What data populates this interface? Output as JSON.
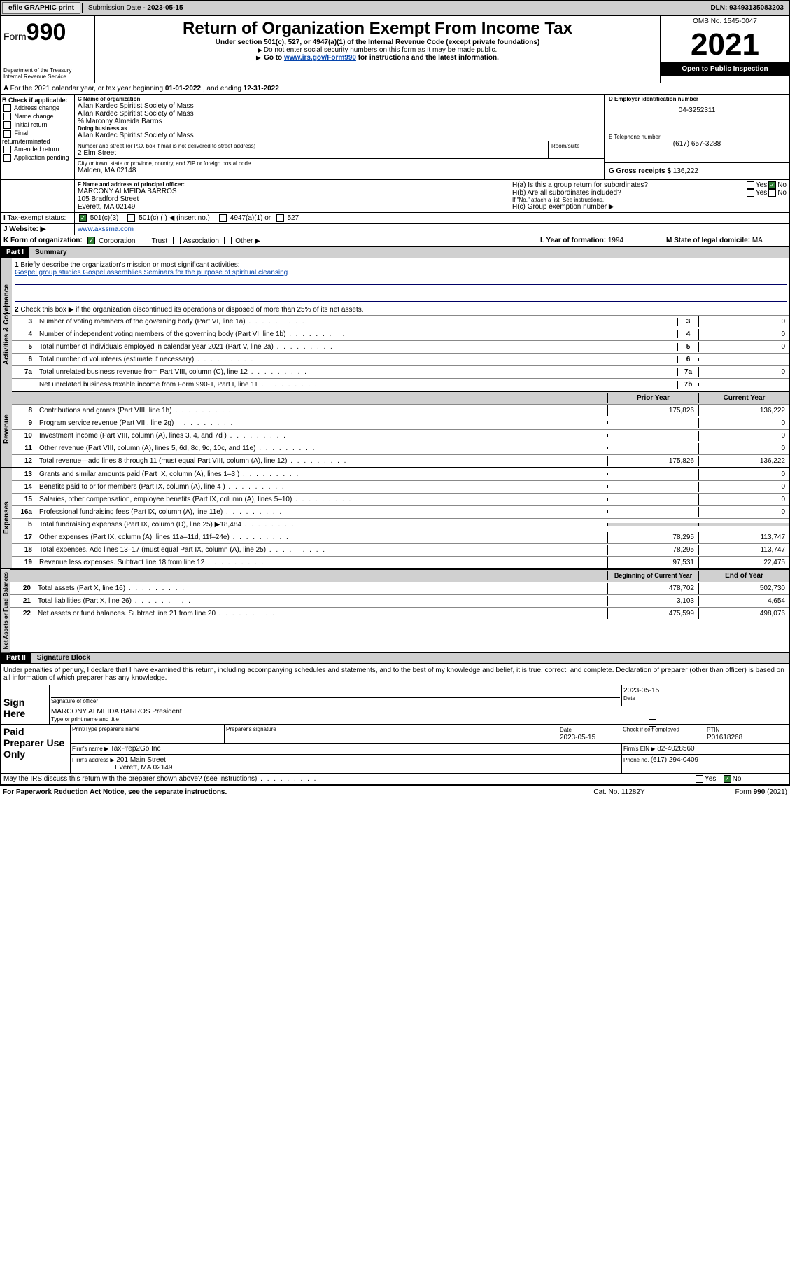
{
  "topbar": {
    "efile": "efile GRAPHIC print",
    "subdate_label": "Submission Date - ",
    "subdate": "2023-05-15",
    "dln_label": "DLN: ",
    "dln": "93493135083203"
  },
  "header": {
    "form_label": "Form",
    "form_num": "990",
    "dept": "Department of the Treasury Internal Revenue Service",
    "title": "Return of Organization Exempt From Income Tax",
    "sub1": "Under section 501(c), 527, or 4947(a)(1) of the Internal Revenue Code (except private foundations)",
    "sub2": "Do not enter social security numbers on this form as it may be made public.",
    "sub3_pre": "Go to ",
    "sub3_link": "www.irs.gov/Form990",
    "sub3_post": " for instructions and the latest information.",
    "omb": "OMB No. 1545-0047",
    "year": "2021",
    "open": "Open to Public Inspection"
  },
  "periodA": {
    "text_pre": "For the 2021 calendar year, or tax year beginning ",
    "begin": "01-01-2022",
    "mid": " , and ending ",
    "end": "12-31-2022"
  },
  "sectionB": {
    "label": "B Check if applicable:",
    "items": [
      "Address change",
      "Name change",
      "Initial return",
      "Final return/terminated",
      "Amended return",
      "Application pending"
    ]
  },
  "sectionC": {
    "label": "C Name of organization",
    "name1": "Allan Kardec Spiritist Society of Mass",
    "name2": "Allan Kardec Spiritist Society of Mass",
    "care": "% Marcony Almeida Barros",
    "dba_label": "Doing business as",
    "dba": "Allan Kardec Spiritist Society of Mass",
    "addr_label": "Number and street (or P.O. box if mail is not delivered to street address)",
    "room_label": "Room/suite",
    "addr": "2 Elm Street",
    "city_label": "City or town, state or province, country, and ZIP or foreign postal code",
    "city": "Malden, MA  02148"
  },
  "sectionD": {
    "label": "D Employer identification number",
    "val": "04-3252311"
  },
  "sectionE": {
    "label": "E Telephone number",
    "val": "(617) 657-3288"
  },
  "sectionG": {
    "label": "G Gross receipts $ ",
    "val": "136,222"
  },
  "sectionF": {
    "label": "F Name and address of principal officer:",
    "name": "MARCONY ALMEIDA BARROS",
    "addr1": "105 Bradford Street",
    "addr2": "Everett, MA  02149"
  },
  "sectionH": {
    "ha": "H(a)  Is this a group return for subordinates?",
    "hb": "H(b)  Are all subordinates included?",
    "hb_note": "If \"No,\" attach a list. See instructions.",
    "hc": "H(c)  Group exemption number ▶",
    "yes": "Yes",
    "no": "No"
  },
  "sectionI": {
    "label": "Tax-exempt status:",
    "opts": [
      "501(c)(3)",
      "501(c) (  ) ◀ (insert no.)",
      "4947(a)(1) or",
      "527"
    ]
  },
  "sectionJ": {
    "label": "Website: ▶",
    "val": "www.akssma.com"
  },
  "sectionK": {
    "label": "K Form of organization:",
    "opts": [
      "Corporation",
      "Trust",
      "Association",
      "Other ▶"
    ]
  },
  "sectionL": {
    "label": "L Year of formation: ",
    "val": "1994"
  },
  "sectionM": {
    "label": "M State of legal domicile: ",
    "val": "MA"
  },
  "part1": {
    "hdr": "Part I",
    "title": "Summary",
    "groups": {
      "gov": "Activities & Governance",
      "rev": "Revenue",
      "exp": "Expenses",
      "net": "Net Assets or Fund Balances"
    },
    "l1_label": "Briefly describe the organization's mission or most significant activities:",
    "l1_text": "Gospel group studies Gospel assemblies Seminars for the purpose of spiritual cleansing",
    "l2": "Check this box ▶       if the organization discontinued its operations or disposed of more than 25% of its net assets.",
    "lines_gov": [
      {
        "n": "3",
        "d": "Number of voting members of the governing body (Part VI, line 1a)",
        "box": "3",
        "v": "0"
      },
      {
        "n": "4",
        "d": "Number of independent voting members of the governing body (Part VI, line 1b)",
        "box": "4",
        "v": "0"
      },
      {
        "n": "5",
        "d": "Total number of individuals employed in calendar year 2021 (Part V, line 2a)",
        "box": "5",
        "v": "0"
      },
      {
        "n": "6",
        "d": "Total number of volunteers (estimate if necessary)",
        "box": "6",
        "v": ""
      },
      {
        "n": "7a",
        "d": "Total unrelated business revenue from Part VIII, column (C), line 12",
        "box": "7a",
        "v": "0"
      },
      {
        "n": "",
        "d": "Net unrelated business taxable income from Form 990-T, Part I, line 11",
        "box": "7b",
        "v": ""
      }
    ],
    "col_prior": "Prior Year",
    "col_curr": "Current Year",
    "lines_rev": [
      {
        "n": "8",
        "d": "Contributions and grants (Part VIII, line 1h)",
        "p": "175,826",
        "c": "136,222"
      },
      {
        "n": "9",
        "d": "Program service revenue (Part VIII, line 2g)",
        "p": "",
        "c": "0"
      },
      {
        "n": "10",
        "d": "Investment income (Part VIII, column (A), lines 3, 4, and 7d )",
        "p": "",
        "c": "0"
      },
      {
        "n": "11",
        "d": "Other revenue (Part VIII, column (A), lines 5, 6d, 8c, 9c, 10c, and 11e)",
        "p": "",
        "c": "0"
      },
      {
        "n": "12",
        "d": "Total revenue—add lines 8 through 11 (must equal Part VIII, column (A), line 12)",
        "p": "175,826",
        "c": "136,222"
      }
    ],
    "lines_exp": [
      {
        "n": "13",
        "d": "Grants and similar amounts paid (Part IX, column (A), lines 1–3 )",
        "p": "",
        "c": "0"
      },
      {
        "n": "14",
        "d": "Benefits paid to or for members (Part IX, column (A), line 4 )",
        "p": "",
        "c": "0"
      },
      {
        "n": "15",
        "d": "Salaries, other compensation, employee benefits (Part IX, column (A), lines 5–10)",
        "p": "",
        "c": "0"
      },
      {
        "n": "16a",
        "d": "Professional fundraising fees (Part IX, column (A), line 11e)",
        "p": "",
        "c": "0"
      },
      {
        "n": "b",
        "d": "Total fundraising expenses (Part IX, column (D), line 25) ▶18,484",
        "p": "shade",
        "c": "shade"
      },
      {
        "n": "17",
        "d": "Other expenses (Part IX, column (A), lines 11a–11d, 11f–24e)",
        "p": "78,295",
        "c": "113,747"
      },
      {
        "n": "18",
        "d": "Total expenses. Add lines 13–17 (must equal Part IX, column (A), line 25)",
        "p": "78,295",
        "c": "113,747"
      },
      {
        "n": "19",
        "d": "Revenue less expenses. Subtract line 18 from line 12",
        "p": "97,531",
        "c": "22,475"
      }
    ],
    "col_begin": "Beginning of Current Year",
    "col_end": "End of Year",
    "lines_net": [
      {
        "n": "20",
        "d": "Total assets (Part X, line 16)",
        "p": "478,702",
        "c": "502,730"
      },
      {
        "n": "21",
        "d": "Total liabilities (Part X, line 26)",
        "p": "3,103",
        "c": "4,654"
      },
      {
        "n": "22",
        "d": "Net assets or fund balances. Subtract line 21 from line 20",
        "p": "475,599",
        "c": "498,076"
      }
    ]
  },
  "part2": {
    "hdr": "Part II",
    "title": "Signature Block",
    "decl": "Under penalties of perjury, I declare that I have examined this return, including accompanying schedules and statements, and to the best of my knowledge and belief, it is true, correct, and complete. Declaration of preparer (other than officer) is based on all information of which preparer has any knowledge.",
    "sign_here": "Sign Here",
    "sig_officer": "Signature of officer",
    "sig_date": "2023-05-15",
    "date_label": "Date",
    "officer_name": "MARCONY ALMEIDA BARROS  President",
    "type_name": "Type or print name and title",
    "paid": "Paid Preparer Use Only",
    "prep_name_label": "Print/Type preparer's name",
    "prep_sig_label": "Preparer's signature",
    "prep_date_label": "Date",
    "prep_date": "2023-05-15",
    "check_self": "Check        if self-employed",
    "ptin_label": "PTIN",
    "ptin": "P01618268",
    "firm_name_label": "Firm's name    ▶",
    "firm_name": "TaxPrep2Go Inc",
    "firm_ein_label": "Firm's EIN ▶",
    "firm_ein": "82-4028560",
    "firm_addr_label": "Firm's address ▶",
    "firm_addr1": "201 Main Street",
    "firm_addr2": "Everett, MA  02149",
    "phone_label": "Phone no. ",
    "phone": "(617) 294-0409",
    "discuss": "May the IRS discuss this return with the preparer shown above? (see instructions)"
  },
  "footer": {
    "pra": "For Paperwork Reduction Act Notice, see the separate instructions.",
    "cat": "Cat. No. 11282Y",
    "form": "Form 990 (2021)"
  }
}
